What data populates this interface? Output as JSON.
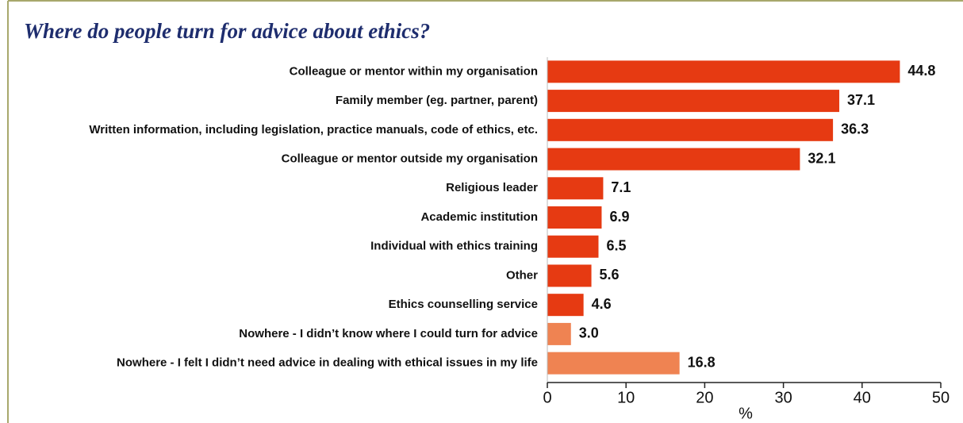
{
  "chart_data": {
    "type": "barh",
    "title": "Where do people turn for advice about ethics?",
    "categories": [
      "Colleague or mentor within my organisation",
      "Family member (eg. partner, parent)",
      "Written information, including legislation, practice manuals, code of ethics, etc.",
      "Colleague or mentor outside my organisation",
      "Religious leader",
      "Academic institution",
      "Individual with ethics training",
      "Other",
      "Ethics counselling service",
      "Nowhere - I didn’t know where I could turn for advice",
      "Nowhere - I felt I didn’t need advice in dealing with ethical issues in my life"
    ],
    "values": [
      44.8,
      37.1,
      36.3,
      32.1,
      7.1,
      6.9,
      6.5,
      5.6,
      4.6,
      3.0,
      16.8
    ],
    "value_labels": [
      "44.8",
      "37.1",
      "36.3",
      "32.1",
      "7.1",
      "6.9",
      "6.5",
      "5.6",
      "4.6",
      "3.0",
      "16.8"
    ],
    "colors": [
      "#e63a12",
      "#e63a12",
      "#e63a12",
      "#e63a12",
      "#e63a12",
      "#e63a12",
      "#e63a12",
      "#e63a12",
      "#e63a12",
      "#ef8352",
      "#ef8352"
    ],
    "xlabel": "%",
    "xlim": [
      0,
      50
    ],
    "xticks": [
      0,
      10,
      20,
      30,
      40,
      50
    ]
  }
}
